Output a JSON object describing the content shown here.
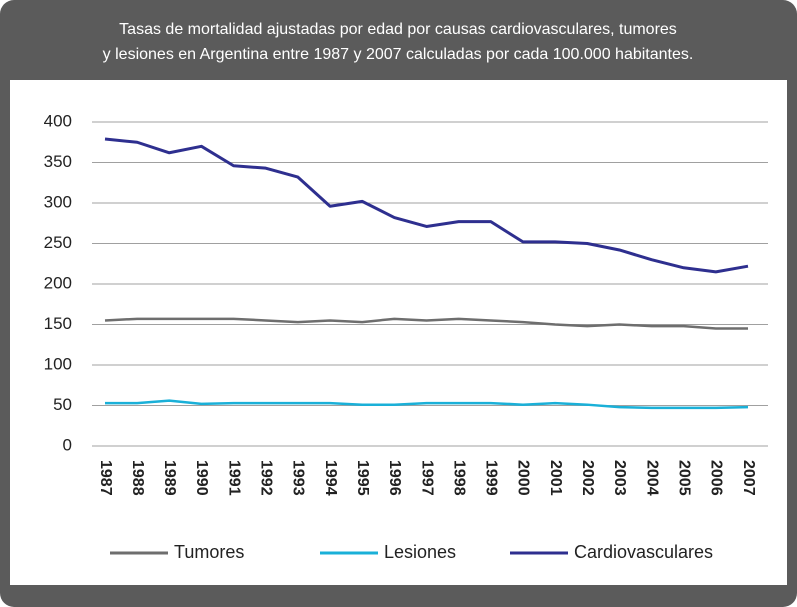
{
  "chart_data": {
    "type": "line",
    "title": [
      "Tasas de mortalidad ajustadas por edad por causas cardiovasculares, tumores",
      "y lesiones en Argentina entre 1987 y 2007 calculadas por cada 100.000 habitantes."
    ],
    "categories": [
      "1987",
      "1988",
      "1989",
      "1990",
      "1991",
      "1992",
      "1993",
      "1994",
      "1995",
      "1996",
      "1997",
      "1998",
      "1999",
      "2000",
      "2001",
      "2002",
      "2003",
      "2004",
      "2005",
      "2006",
      "2007"
    ],
    "series": [
      {
        "name": "Tumores",
        "color": "#6e6e6e",
        "values": [
          155,
          157,
          157,
          157,
          157,
          155,
          153,
          155,
          153,
          157,
          155,
          157,
          155,
          153,
          150,
          148,
          150,
          148,
          148,
          145,
          145
        ]
      },
      {
        "name": "Lesiones",
        "color": "#1ab0d8",
        "values": [
          53,
          53,
          56,
          52,
          53,
          53,
          53,
          53,
          51,
          51,
          53,
          53,
          53,
          51,
          53,
          51,
          48,
          47,
          47,
          47,
          48
        ]
      },
      {
        "name": "Cardiovasculares",
        "color": "#2e2f8f",
        "values": [
          379,
          375,
          362,
          370,
          346,
          343,
          332,
          296,
          302,
          282,
          271,
          277,
          277,
          252,
          252,
          250,
          242,
          230,
          220,
          215,
          222
        ]
      }
    ],
    "ylim": [
      0,
      400
    ],
    "yticks": [
      0,
      50,
      100,
      150,
      200,
      250,
      300,
      350,
      400
    ],
    "grid": true,
    "legend": "bottom"
  }
}
